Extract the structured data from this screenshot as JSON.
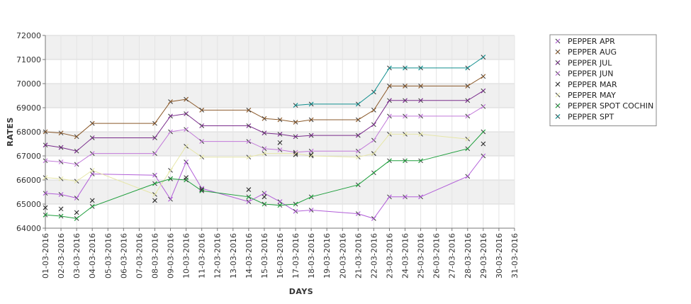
{
  "chart_data": {
    "type": "line",
    "xlabel": "DAYS",
    "ylabel": "RATES",
    "ylim": [
      64000,
      72000
    ],
    "y_ticks": [
      64000,
      65000,
      66000,
      67000,
      68000,
      69000,
      70000,
      71000,
      72000
    ],
    "categories": [
      "01-03-2016",
      "02-03-2016",
      "03-03-2016",
      "04-03-2016",
      "05-03-2016",
      "06-03-2016",
      "07-03-2016",
      "08-03-2016",
      "09-03-2016",
      "10-03-2016",
      "11-03-2016",
      "12-03-2016",
      "13-03-2016",
      "14-03-2016",
      "15-03-2016",
      "16-03-2016",
      "17-03-2016",
      "18-03-2016",
      "19-03-2016",
      "20-03-2016",
      "21-03-2016",
      "22-03-2016",
      "23-03-2016",
      "24-03-2016",
      "25-03-2016",
      "26-03-2016",
      "27-03-2016",
      "28-03-2016",
      "29-03-2016",
      "30-03-2016",
      "31-03-2016"
    ],
    "grid": true,
    "legend_position": "right",
    "series": [
      {
        "name": "PEPPER APR",
        "color": "#b25fd8",
        "line": true,
        "values": [
          65450,
          65400,
          65250,
          66250,
          null,
          null,
          null,
          66200,
          65200,
          66750,
          65650,
          null,
          null,
          65100,
          65450,
          65100,
          64700,
          64750,
          null,
          null,
          64600,
          64400,
          65300,
          65300,
          65300,
          null,
          null,
          66150,
          67000,
          null,
          null
        ]
      },
      {
        "name": "PEPPER AUG",
        "color": "#8b5a2b",
        "line": true,
        "values": [
          68000,
          67950,
          67800,
          68350,
          null,
          null,
          null,
          68350,
          69250,
          69350,
          68900,
          null,
          null,
          68900,
          68550,
          68500,
          68400,
          68500,
          null,
          null,
          68500,
          68900,
          69900,
          69900,
          69900,
          null,
          null,
          69900,
          70300,
          null,
          null
        ]
      },
      {
        "name": "PEPPER JUL",
        "color": "#7a2d8c",
        "line": true,
        "values": [
          67450,
          67350,
          67200,
          67750,
          null,
          null,
          null,
          67750,
          68650,
          68750,
          68250,
          null,
          null,
          68250,
          67950,
          67900,
          67800,
          67850,
          null,
          null,
          67850,
          68300,
          69300,
          69300,
          69300,
          null,
          null,
          69300,
          69700,
          null,
          null
        ]
      },
      {
        "name": "PEPPER JUN",
        "color": "#c27ad9",
        "line": true,
        "values": [
          66800,
          66750,
          66650,
          67100,
          null,
          null,
          null,
          67100,
          68000,
          68100,
          67600,
          null,
          null,
          67600,
          67300,
          67250,
          67150,
          67200,
          null,
          null,
          67200,
          67650,
          68650,
          68650,
          68650,
          null,
          null,
          68650,
          69050,
          null,
          null
        ]
      },
      {
        "name": "PEPPER MAR",
        "color": "#2b2b2b",
        "line": false,
        "values": [
          64850,
          64800,
          64650,
          65150,
          null,
          null,
          null,
          65150,
          66050,
          66100,
          65600,
          null,
          null,
          65600,
          65300,
          67550,
          67050,
          67050,
          null,
          null,
          null,
          67100,
          null,
          null,
          null,
          null,
          null,
          null,
          67500,
          null,
          null
        ]
      },
      {
        "name": "PEPPER MAY",
        "color": "#e6e6a8",
        "line": true,
        "values": [
          66100,
          66050,
          65950,
          66400,
          null,
          null,
          null,
          65400,
          66400,
          67400,
          66950,
          null,
          null,
          66950,
          67100,
          null,
          67100,
          67000,
          null,
          null,
          66950,
          67100,
          67900,
          67900,
          67900,
          null,
          null,
          67700,
          null,
          null,
          null
        ]
      },
      {
        "name": "PEPPER SPOT COCHIN",
        "color": "#1e9e3c",
        "line": true,
        "values": [
          64550,
          64500,
          64400,
          64900,
          null,
          null,
          null,
          65850,
          66050,
          66000,
          65550,
          null,
          null,
          65300,
          65000,
          64950,
          65000,
          65300,
          null,
          null,
          65800,
          66300,
          66800,
          66800,
          66800,
          null,
          null,
          67300,
          68000,
          null,
          null
        ]
      },
      {
        "name": "PEPPER SPT",
        "color": "#138f8f",
        "line": true,
        "values": [
          null,
          null,
          null,
          null,
          null,
          null,
          null,
          null,
          null,
          null,
          null,
          null,
          null,
          null,
          null,
          null,
          69100,
          69150,
          null,
          null,
          69150,
          69650,
          70650,
          70650,
          70650,
          null,
          null,
          70650,
          71100,
          null,
          null
        ]
      }
    ]
  }
}
